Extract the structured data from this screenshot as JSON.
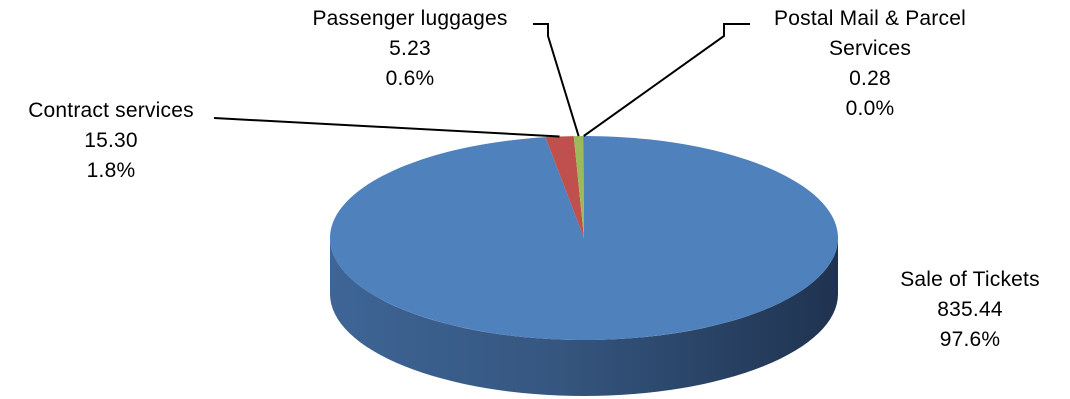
{
  "chart_data": {
    "type": "pie",
    "style": "3d",
    "slices": [
      {
        "label": "Sale of Tickets",
        "value": 835.44,
        "value_text": "835.44",
        "percent": "97.6%",
        "color": "#4F81BD"
      },
      {
        "label": "Contract services",
        "value": 15.3,
        "value_text": "15.30",
        "percent": "1.8%",
        "color": "#C0504D"
      },
      {
        "label": "Passenger luggages",
        "value": 5.23,
        "value_text": "5.23",
        "percent": "0.6%",
        "color": "#9BBB59"
      },
      {
        "label": "Postal Mail & Parcel Services",
        "label_lines": [
          "Postal Mail & Parcel",
          "Services"
        ],
        "value": 0.28,
        "value_text": "0.28",
        "percent": "0.0%",
        "color": "#8064A2"
      }
    ],
    "legend": "none",
    "labels": "outside with leader lines"
  }
}
